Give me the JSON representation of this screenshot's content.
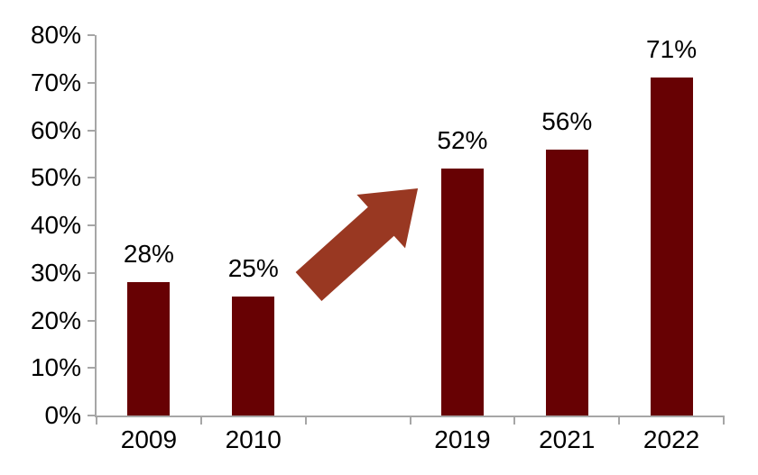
{
  "chart_data": {
    "type": "bar",
    "title": "",
    "xlabel": "",
    "ylabel": "",
    "categories": [
      "2009",
      "2010",
      "",
      "2019",
      "2021",
      "2022"
    ],
    "values": [
      28,
      25,
      null,
      52,
      56,
      71
    ],
    "data_labels": [
      "28%",
      "25%",
      "",
      "52%",
      "56%",
      "71%"
    ],
    "y_ticks": [
      "0%",
      "10%",
      "20%",
      "30%",
      "40%",
      "50%",
      "60%",
      "70%",
      "80%"
    ],
    "ylim": [
      0,
      80
    ],
    "y_tick_step": 10,
    "grid": false,
    "legend": false,
    "bar_color": "#670103",
    "axis_color": "#A6A6A6",
    "text_color": "#000000",
    "annotation": {
      "type": "up-right-arrow",
      "color": "#993822",
      "between": [
        "2010",
        "2019"
      ]
    }
  }
}
